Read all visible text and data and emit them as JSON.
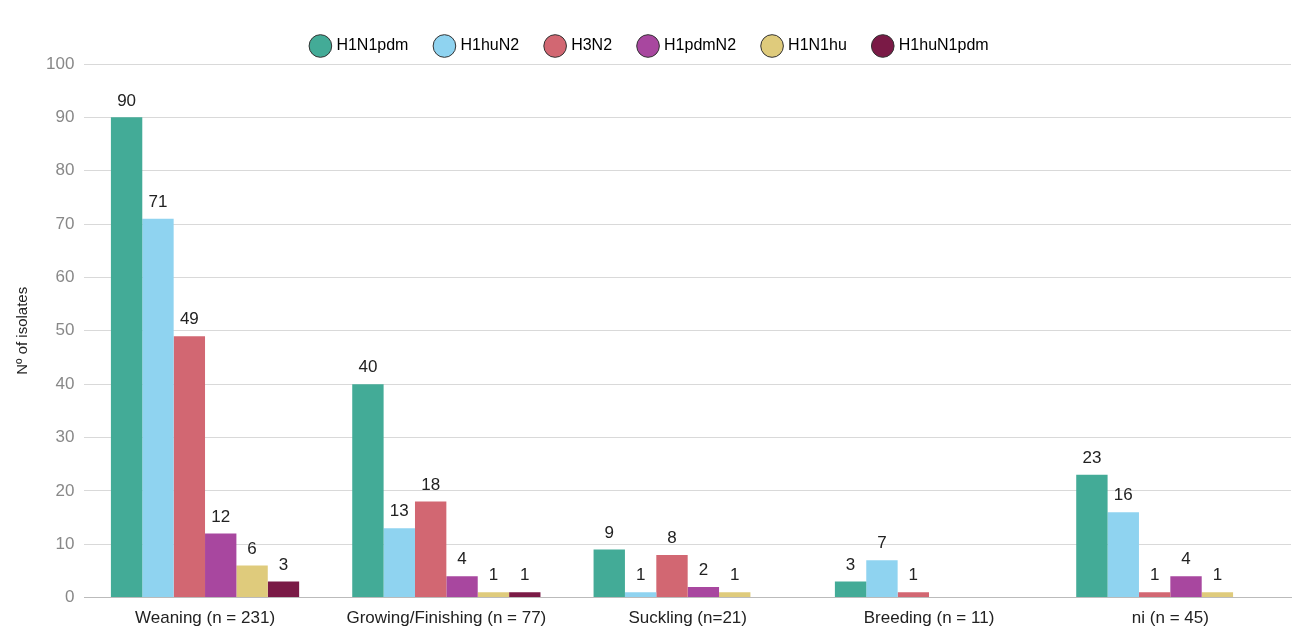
{
  "chart_data": {
    "type": "bar",
    "categories": [
      "Weaning (n = 231)",
      "Growing/Finishing (n = 77)",
      "Suckling (n=21)",
      "Breeding (n = 11)",
      "ni (n = 45)"
    ],
    "series": [
      {
        "name": "H1N1pdm",
        "color": "#43ab97",
        "values": [
          90,
          40,
          9,
          3,
          23
        ]
      },
      {
        "name": "H1huN2",
        "color": "#8fd3f0",
        "values": [
          71,
          13,
          1,
          7,
          16
        ]
      },
      {
        "name": "H3N2",
        "color": "#d26772",
        "values": [
          49,
          18,
          8,
          1,
          1
        ]
      },
      {
        "name": "H1pdmN2",
        "color": "#a8479f",
        "values": [
          12,
          4,
          2,
          null,
          4
        ]
      },
      {
        "name": "H1N1hu",
        "color": "#dfcb7c",
        "values": [
          6,
          1,
          1,
          null,
          1
        ]
      },
      {
        "name": "H1huN1pdm",
        "color": "#7a1a46",
        "values": [
          3,
          1,
          null,
          null,
          null
        ]
      }
    ],
    "ylabel": "Nº of isolates",
    "ylim": [
      0,
      100
    ],
    "yticks": [
      0,
      10,
      20,
      30,
      40,
      50,
      60,
      70,
      80,
      90,
      100
    ],
    "grid": "y",
    "legend": "top",
    "data_labels": true
  }
}
